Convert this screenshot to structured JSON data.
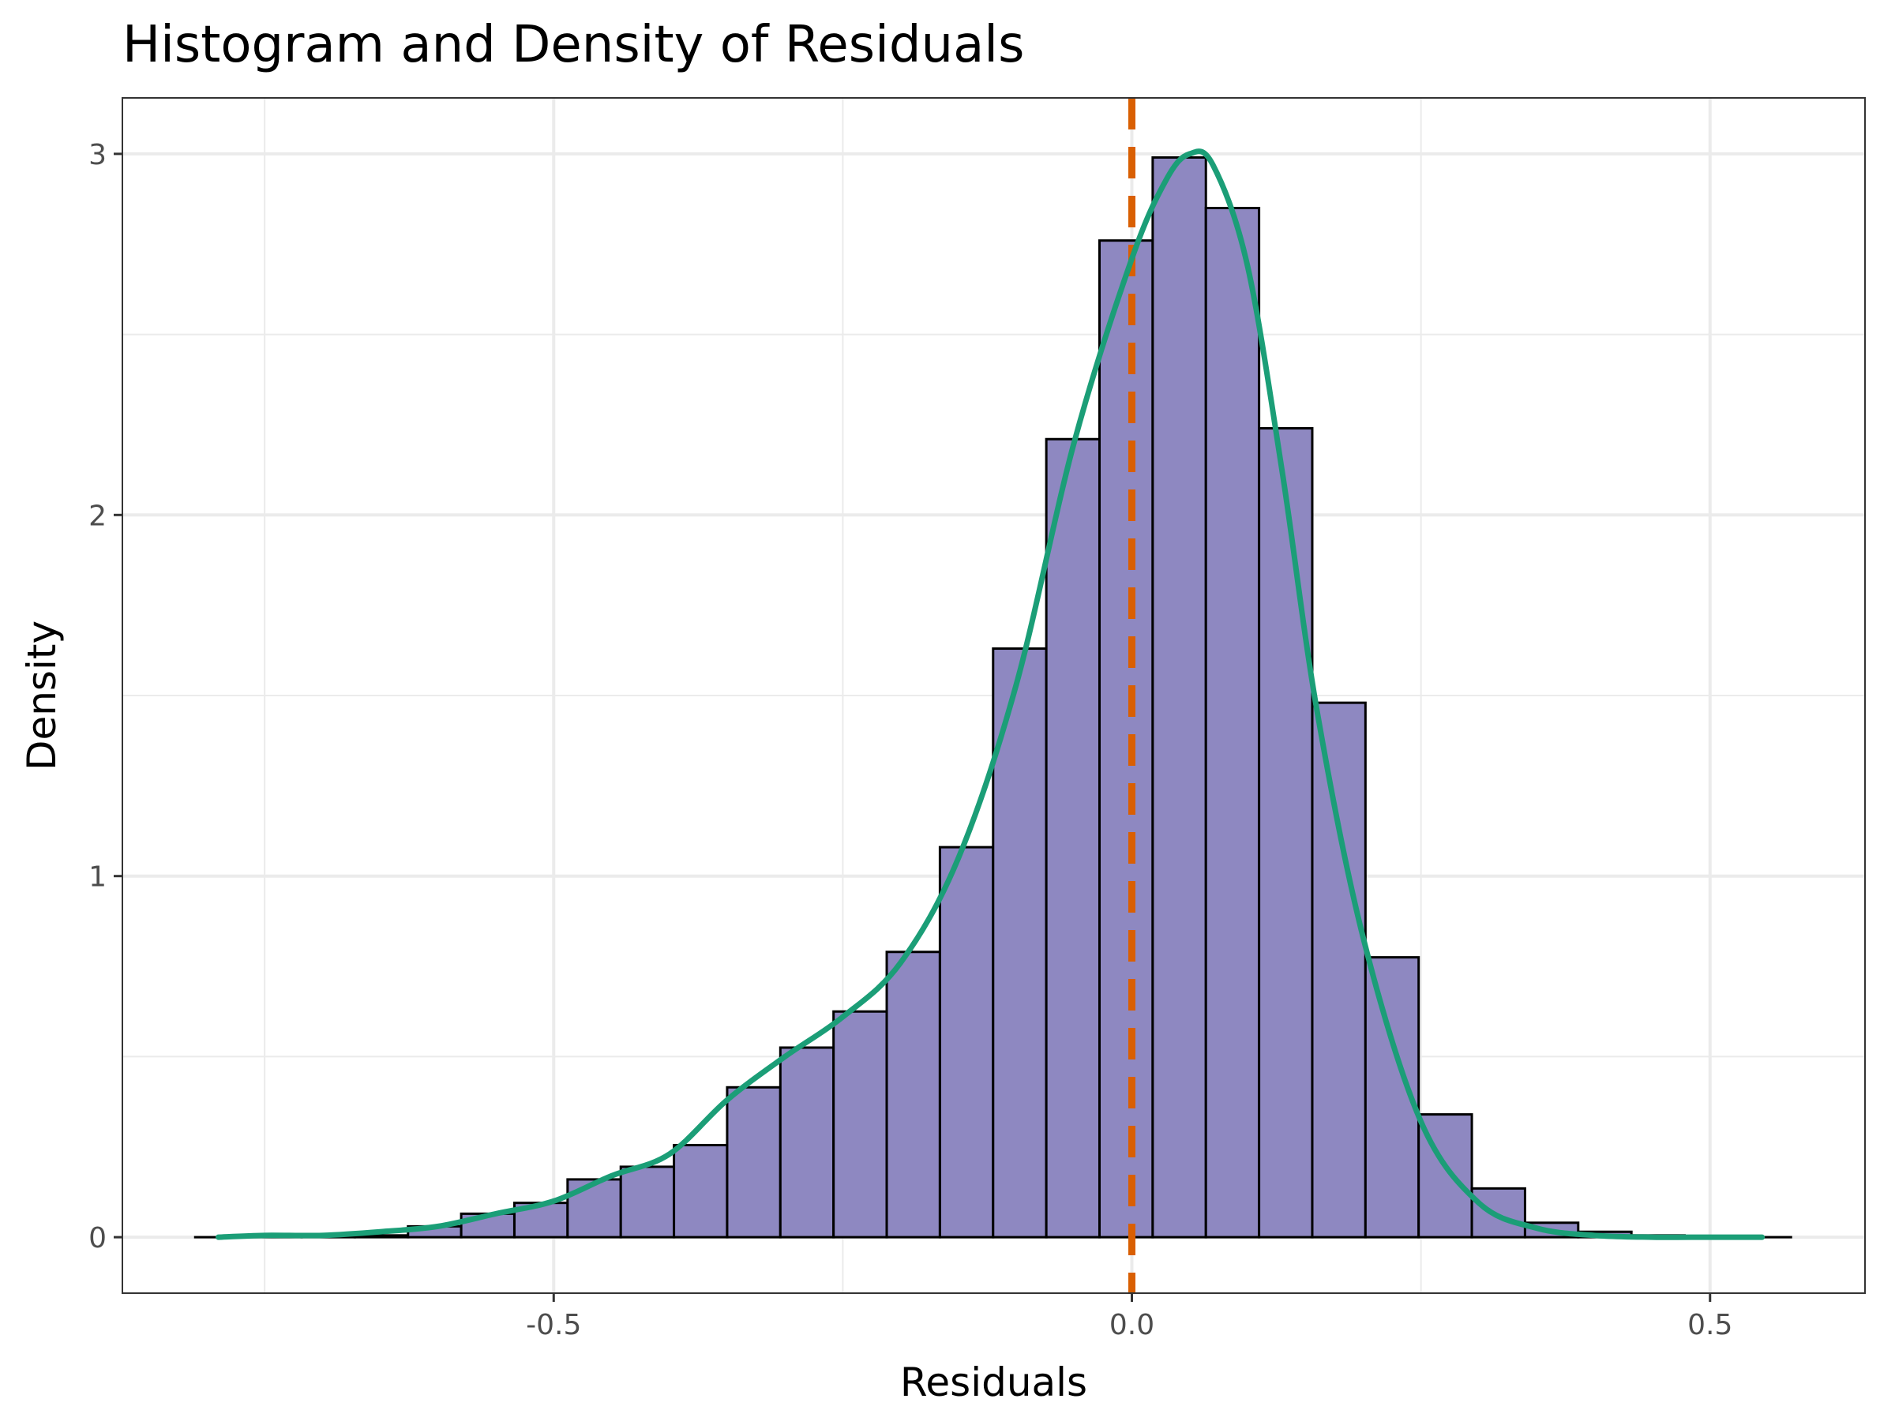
{
  "chart_data": {
    "type": "histogram",
    "title": "Histogram and Density of Residuals",
    "xlabel": "Residuals",
    "ylabel": "Density",
    "xlim": [
      -0.873,
      0.634
    ],
    "ylim": [
      -0.155,
      3.155
    ],
    "x_ticks": [
      {
        "value": -0.5,
        "label": "-0.5"
      },
      {
        "value": 0.0,
        "label": "0.0"
      },
      {
        "value": 0.5,
        "label": "0.5"
      }
    ],
    "y_ticks": [
      {
        "value": 0,
        "label": "0"
      },
      {
        "value": 1,
        "label": "1"
      },
      {
        "value": 2,
        "label": "2"
      },
      {
        "value": 3,
        "label": "3"
      }
    ],
    "x_minor_grid": [
      -0.75,
      -0.25,
      0.25
    ],
    "y_minor_grid": [
      0.5,
      1.5,
      2.5
    ],
    "grid": true,
    "bin_width": 0.046,
    "bins": [
      {
        "x0": -0.81,
        "x1": -0.764,
        "density": 0.0
      },
      {
        "x0": -0.764,
        "x1": -0.718,
        "density": 0.0
      },
      {
        "x0": -0.718,
        "x1": -0.672,
        "density": 0.0
      },
      {
        "x0": -0.672,
        "x1": -0.626,
        "density": 0.005
      },
      {
        "x0": -0.626,
        "x1": -0.58,
        "density": 0.03
      },
      {
        "x0": -0.58,
        "x1": -0.534,
        "density": 0.065
      },
      {
        "x0": -0.534,
        "x1": -0.488,
        "density": 0.095
      },
      {
        "x0": -0.488,
        "x1": -0.442,
        "density": 0.16
      },
      {
        "x0": -0.442,
        "x1": -0.396,
        "density": 0.195
      },
      {
        "x0": -0.396,
        "x1": -0.35,
        "density": 0.255
      },
      {
        "x0": -0.35,
        "x1": -0.304,
        "density": 0.415
      },
      {
        "x0": -0.304,
        "x1": -0.258,
        "density": 0.525
      },
      {
        "x0": -0.258,
        "x1": -0.212,
        "density": 0.625
      },
      {
        "x0": -0.212,
        "x1": -0.166,
        "density": 0.79
      },
      {
        "x0": -0.166,
        "x1": -0.12,
        "density": 1.08
      },
      {
        "x0": -0.12,
        "x1": -0.074,
        "density": 1.63
      },
      {
        "x0": -0.074,
        "x1": -0.028,
        "density": 2.21
      },
      {
        "x0": -0.028,
        "x1": 0.018,
        "density": 2.76
      },
      {
        "x0": 0.018,
        "x1": 0.064,
        "density": 2.99
      },
      {
        "x0": 0.064,
        "x1": 0.11,
        "density": 2.85
      },
      {
        "x0": 0.11,
        "x1": 0.156,
        "density": 2.24
      },
      {
        "x0": 0.156,
        "x1": 0.202,
        "density": 1.48
      },
      {
        "x0": 0.202,
        "x1": 0.248,
        "density": 0.775
      },
      {
        "x0": 0.248,
        "x1": 0.294,
        "density": 0.34
      },
      {
        "x0": 0.294,
        "x1": 0.34,
        "density": 0.135
      },
      {
        "x0": 0.34,
        "x1": 0.386,
        "density": 0.04
      },
      {
        "x0": 0.386,
        "x1": 0.432,
        "density": 0.015
      },
      {
        "x0": 0.432,
        "x1": 0.478,
        "density": 0.005
      },
      {
        "x0": 0.478,
        "x1": 0.524,
        "density": 0.0
      },
      {
        "x0": 0.524,
        "x1": 0.57,
        "density": 0.0
      }
    ],
    "density_curve": {
      "x": [
        -0.79,
        -0.75,
        -0.7,
        -0.65,
        -0.6,
        -0.55,
        -0.5,
        -0.45,
        -0.4,
        -0.35,
        -0.3,
        -0.25,
        -0.2,
        -0.15,
        -0.1,
        -0.05,
        0.0,
        0.03,
        0.05,
        0.07,
        0.1,
        0.13,
        0.16,
        0.2,
        0.25,
        0.3,
        0.35,
        0.4,
        0.45,
        0.5,
        0.545
      ],
      "y": [
        0.0,
        0.005,
        0.005,
        0.015,
        0.03,
        0.065,
        0.1,
        0.17,
        0.23,
        0.38,
        0.5,
        0.61,
        0.76,
        1.05,
        1.53,
        2.2,
        2.71,
        2.93,
        3.0,
        2.97,
        2.69,
        2.12,
        1.46,
        0.83,
        0.32,
        0.095,
        0.025,
        0.005,
        0.0,
        0.0,
        0.0
      ],
      "color": "#1b9e77"
    },
    "reference_line": {
      "x": 0.0,
      "color": "#d95f02",
      "style": "dashed"
    },
    "bar_fill": "#8e88c1",
    "bar_stroke": "#000000"
  }
}
